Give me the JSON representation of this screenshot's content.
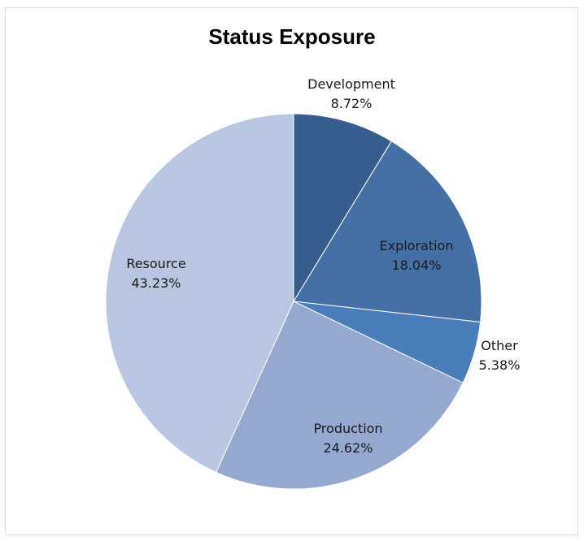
{
  "chart_data": {
    "type": "pie",
    "title": "Status Exposure",
    "slices": [
      {
        "label": "Development",
        "value": 8.72,
        "value_label": "8.72%",
        "color": "#375D8F"
      },
      {
        "label": "Exploration",
        "value": 18.04,
        "value_label": "18.04%",
        "color": "#4570A6"
      },
      {
        "label": "Other",
        "value": 5.38,
        "value_label": "5.38%",
        "color": "#4A7EBB"
      },
      {
        "label": "Production",
        "value": 24.62,
        "value_label": "24.62%",
        "color": "#95A9D0"
      },
      {
        "label": "Resource",
        "value": 43.23,
        "value_label": "43.23%",
        "color": "#B9C6E1"
      }
    ],
    "legend": "none"
  }
}
